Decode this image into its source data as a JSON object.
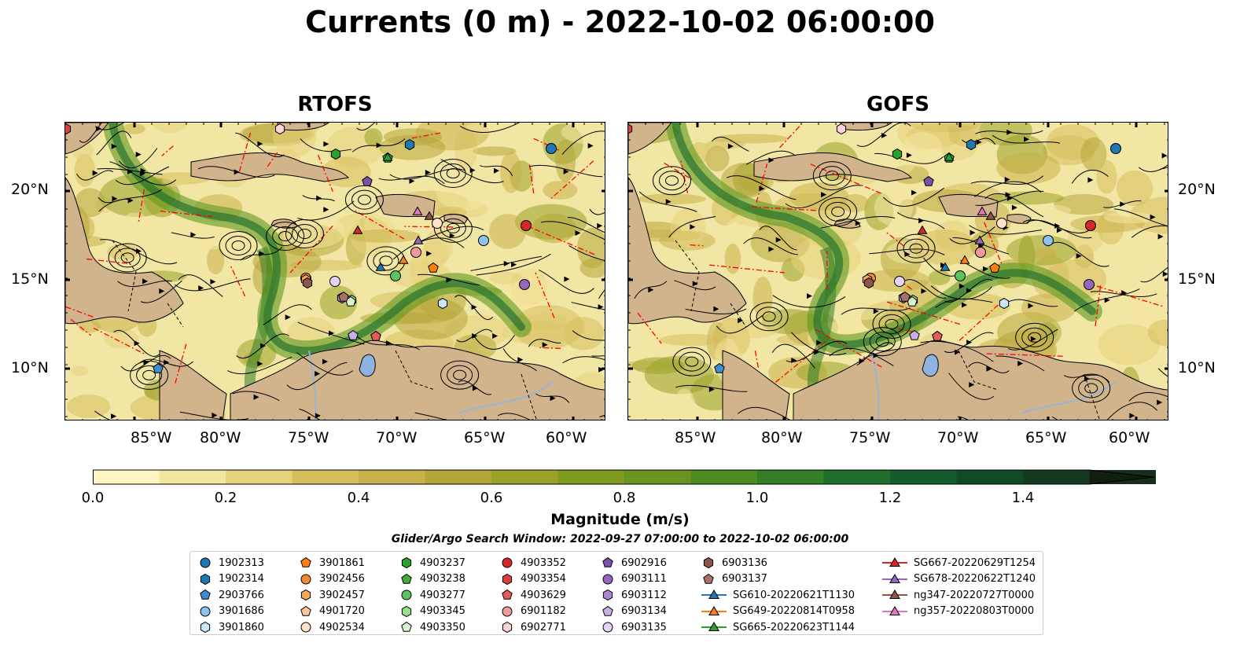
{
  "title": "Currents (0 m) - 2022-10-02 06:00:00",
  "panels": [
    {
      "name": "RTOFS"
    },
    {
      "name": "GOFS"
    }
  ],
  "axes": {
    "lon_labels": [
      "85°W",
      "80°W",
      "75°W",
      "70°W",
      "65°W",
      "60°W"
    ],
    "lat_labels": [
      "20°N",
      "15°N",
      "10°N"
    ]
  },
  "colorbar": {
    "label": "Magnitude (m/s)",
    "ticks": [
      "0.0",
      "0.2",
      "0.4",
      "0.6",
      "0.8",
      "1.0",
      "1.2",
      "1.4"
    ],
    "colors": [
      "#fdf6c0",
      "#f4e6a0",
      "#e6d27c",
      "#d6be5c",
      "#c8b04a",
      "#b5a63a",
      "#9aa22a",
      "#7f9a1e",
      "#6a9420",
      "#4e8a22",
      "#337e26",
      "#1e6e2c",
      "#145c2c",
      "#124a26",
      "#143a20",
      "#182e1c"
    ]
  },
  "search_window": "Glider/Argo Search Window: 2022-09-27 07:00:00 to 2022-10-02 06:00:00",
  "legend": {
    "columns": [
      [
        {
          "label": "1902313",
          "shape": "circle",
          "color": "#1f77b4"
        },
        {
          "label": "1902314",
          "shape": "hexagon",
          "color": "#1f77b4"
        },
        {
          "label": "2903766",
          "shape": "pentagon",
          "color": "#3d8ed0"
        },
        {
          "label": "3901686",
          "shape": "circle",
          "color": "#8ec3f0"
        },
        {
          "label": "3901860",
          "shape": "hexagon",
          "color": "#cce7fb"
        }
      ],
      [
        {
          "label": "3901861",
          "shape": "pentagon",
          "color": "#ff7f0e"
        },
        {
          "label": "3902456",
          "shape": "circle",
          "color": "#f28a2e"
        },
        {
          "label": "3902457",
          "shape": "hexagon",
          "color": "#f5a75a"
        },
        {
          "label": "4901720",
          "shape": "pentagon",
          "color": "#f8c79a"
        },
        {
          "label": "4902534",
          "shape": "circle",
          "color": "#fde3c8"
        }
      ],
      [
        {
          "label": "4903237",
          "shape": "hexagon",
          "color": "#2ca02c"
        },
        {
          "label": "4903238",
          "shape": "pentagon",
          "color": "#3cae3c"
        },
        {
          "label": "4903277",
          "shape": "circle",
          "color": "#5cc45c"
        },
        {
          "label": "4903345",
          "shape": "hexagon",
          "color": "#98df8a"
        },
        {
          "label": "4903350",
          "shape": "pentagon",
          "color": "#d8f5cf"
        }
      ],
      [
        {
          "label": "4903352",
          "shape": "circle",
          "color": "#d62728"
        },
        {
          "label": "4903354",
          "shape": "hexagon",
          "color": "#d84040"
        },
        {
          "label": "4903629",
          "shape": "pentagon",
          "color": "#e55a5a"
        },
        {
          "label": "6901182",
          "shape": "circle",
          "color": "#f29a9a"
        },
        {
          "label": "6902771",
          "shape": "hexagon",
          "color": "#fbd5d5"
        }
      ],
      [
        {
          "label": "6902916",
          "shape": "pentagon",
          "color": "#7b52ab"
        },
        {
          "label": "6903111",
          "shape": "circle",
          "color": "#9467bd"
        },
        {
          "label": "6903112",
          "shape": "hexagon",
          "color": "#ab86d2"
        },
        {
          "label": "6903134",
          "shape": "pentagon",
          "color": "#c9aee8"
        },
        {
          "label": "6903135",
          "shape": "circle",
          "color": "#e3d3f6"
        }
      ],
      [
        {
          "label": "6903136",
          "shape": "hexagon",
          "color": "#8c564b"
        },
        {
          "label": "6903137",
          "shape": "pentagon",
          "color": "#a87366"
        },
        {
          "label": "SG610-20220621T1130",
          "shape": "triangle-line",
          "color": "#1f77b4"
        },
        {
          "label": "SG649-20220814T0958",
          "shape": "triangle-line",
          "color": "#ff7f0e"
        },
        {
          "label": "SG665-20220623T1144",
          "shape": "triangle-line",
          "color": "#2ca02c"
        }
      ],
      [
        {
          "label": "SG667-20220629T1254",
          "shape": "triangle-line",
          "color": "#d62728"
        },
        {
          "label": "SG678-20220622T1240",
          "shape": "triangle-line",
          "color": "#9467bd"
        },
        {
          "label": "ng347-20220727T0000",
          "shape": "triangle-line",
          "color": "#8c564b"
        },
        {
          "label": "ng357-20220803T0000",
          "shape": "triangle-line",
          "color": "#e377c2"
        }
      ]
    ]
  },
  "colors": {
    "land": "#d2b48c",
    "water_body": "#8fb3e0",
    "boundary": "#ff0000"
  }
}
